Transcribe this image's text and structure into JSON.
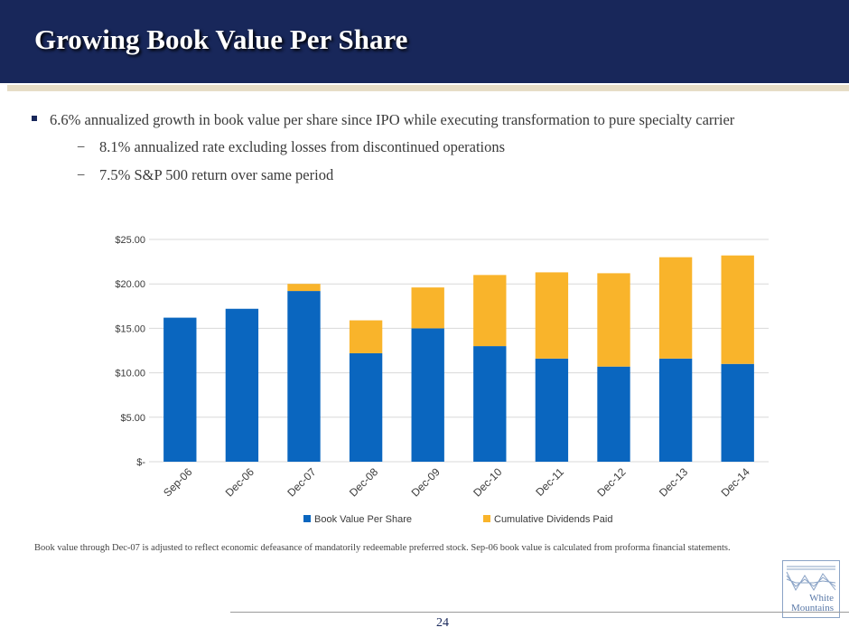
{
  "slide": {
    "title": "Growing Book Value Per Share",
    "bullets": {
      "main": "6.6% annualized growth in book value per share since IPO while executing transformation to pure specialty carrier",
      "sub": [
        "8.1% annualized rate excluding losses from discontinued operations",
        "7.5% S&P 500 return over same period"
      ],
      "sub_marker": "−"
    },
    "footnote": "Book value through Dec-07 is adjusted to reflect economic defeasance of mandatorily redeemable preferred stock.  Sep-06 book value is calculated from proforma financial statements.",
    "logo_lines": [
      "White",
      "Mountains"
    ],
    "page_number": "24"
  },
  "colors": {
    "header_bg": "#18275a",
    "book_value": "#0a66bf",
    "dividends": "#f9b42b",
    "grid": "#d9d9d9"
  },
  "chart_data": {
    "type": "bar",
    "stacked": true,
    "categories": [
      "Sep-06",
      "Dec-06",
      "Dec-07",
      "Dec-08",
      "Dec-09",
      "Dec-10",
      "Dec-11",
      "Dec-12",
      "Dec-13",
      "Dec-14"
    ],
    "series": [
      {
        "name": "Book Value Per Share",
        "values": [
          16.2,
          17.2,
          19.2,
          12.2,
          15.0,
          13.0,
          11.6,
          10.7,
          11.6,
          11.0
        ]
      },
      {
        "name": "Cumulative Dividends Paid",
        "values": [
          0.0,
          0.0,
          0.8,
          3.7,
          4.6,
          8.0,
          9.7,
          10.5,
          11.4,
          12.2
        ]
      }
    ],
    "ylim": [
      0,
      25
    ],
    "y_ticks": [
      0,
      5,
      10,
      15,
      20,
      25
    ],
    "y_tick_labels": [
      "$-",
      "$5.00",
      "$10.00",
      "$15.00",
      "$20.00",
      "$25.00"
    ],
    "grid": true,
    "legend_position": "bottom"
  }
}
